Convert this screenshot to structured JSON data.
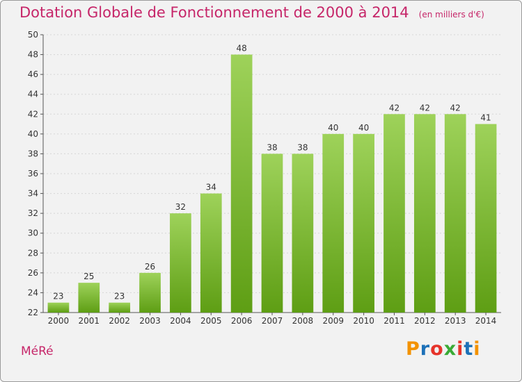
{
  "header": {
    "title": "Dotation Globale de Fonctionnement de 2000 à 2014",
    "unit": "(en milliers d'€)"
  },
  "footer": {
    "commune": "MéRé",
    "logo": [
      "P",
      "r",
      "o",
      "x",
      "i",
      "t",
      "i"
    ],
    "logo_colors": [
      "#f39200",
      "#1d71b8",
      "#e6332a",
      "#3aaa35",
      "#e6332a",
      "#1d71b8",
      "#f39200"
    ]
  },
  "colors": {
    "bar_top": "#9ed25a",
    "bar_bottom": "#5e9e14",
    "title": "#c62669"
  },
  "chart_data": {
    "type": "bar",
    "title": "Dotation Globale de Fonctionnement de 2000 à 2014",
    "subtitle": "(en milliers d'€)",
    "xlabel": "",
    "ylabel": "",
    "categories": [
      "2000",
      "2001",
      "2002",
      "2003",
      "2004",
      "2005",
      "2006",
      "2007",
      "2008",
      "2009",
      "2010",
      "2011",
      "2012",
      "2013",
      "2014"
    ],
    "values": [
      23,
      25,
      23,
      26,
      32,
      34,
      48,
      38,
      38,
      40,
      40,
      42,
      42,
      42,
      41
    ],
    "ylim": [
      22,
      50
    ],
    "yticks": [
      22,
      24,
      26,
      28,
      30,
      32,
      34,
      36,
      38,
      40,
      42,
      44,
      46,
      48,
      50
    ],
    "grid": true
  }
}
